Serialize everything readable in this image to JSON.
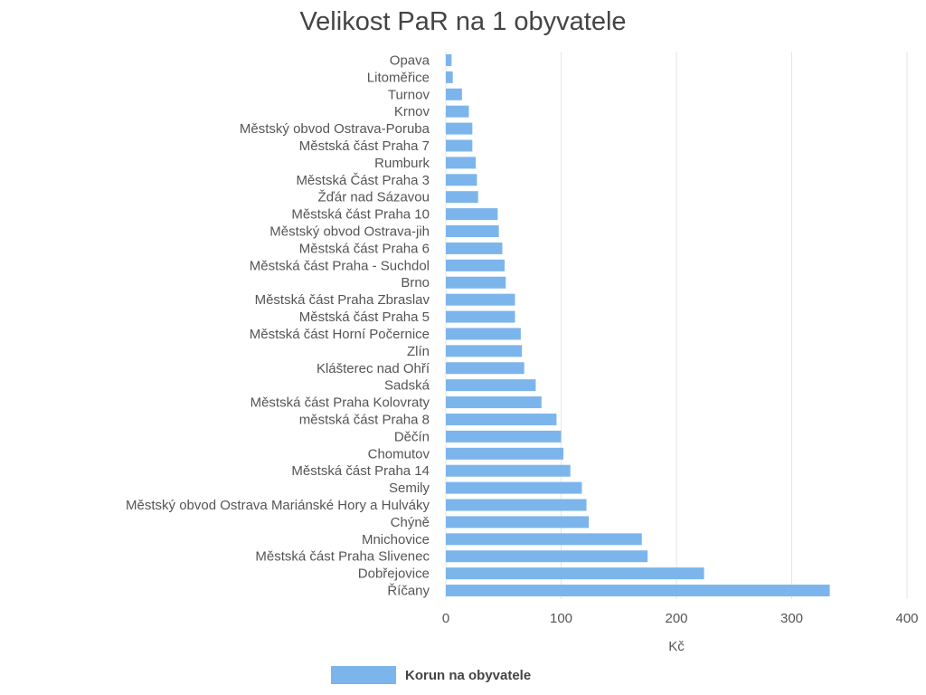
{
  "chart_data": {
    "type": "bar",
    "orientation": "horizontal",
    "title": "Velikost PaR na 1 obyvatele",
    "xlabel": "Kč",
    "ylabel": "",
    "xlim": [
      0,
      400
    ],
    "ticks": [
      "0",
      "100",
      "200",
      "300",
      "400"
    ],
    "grid": true,
    "legend_position": "bottom",
    "categories": [
      "Opava",
      "Litoměřice",
      "Turnov",
      "Krnov",
      "Městský obvod Ostrava-Poruba",
      "Městská část Praha 7",
      "Rumburk",
      "Městská Část Praha 3",
      "Žďár nad Sázavou",
      "Městská část Praha 10",
      "Městský obvod Ostrava-jih",
      "Městská část Praha 6",
      "Městská část Praha - Suchdol",
      "Brno",
      "Městská část Praha Zbraslav",
      "Městská část Praha 5",
      "Městská část Horní Počernice",
      "Zlín",
      "Klášterec nad Ohří",
      "Sadská",
      "Městská část Praha Kolovraty",
      "městská část Praha 8",
      "Děčín",
      "Chomutov",
      "Městská část Praha 14",
      "Semily",
      "Městský obvod Ostrava Mariánské Hory  a Hulváky",
      "Chýně",
      "Mnichovice",
      "Městská část Praha Slivenec",
      "Dobřejovice",
      "Říčany"
    ],
    "series": [
      {
        "name": "Korun na obyvatele",
        "color": "#7cb5ec",
        "values": [
          5,
          6,
          14,
          20,
          23,
          23,
          26,
          27,
          28,
          45,
          46,
          49,
          51,
          52,
          60,
          60,
          65,
          66,
          68,
          78,
          83,
          96,
          100,
          102,
          108,
          118,
          122,
          124,
          170,
          175,
          224,
          333
        ]
      }
    ]
  }
}
